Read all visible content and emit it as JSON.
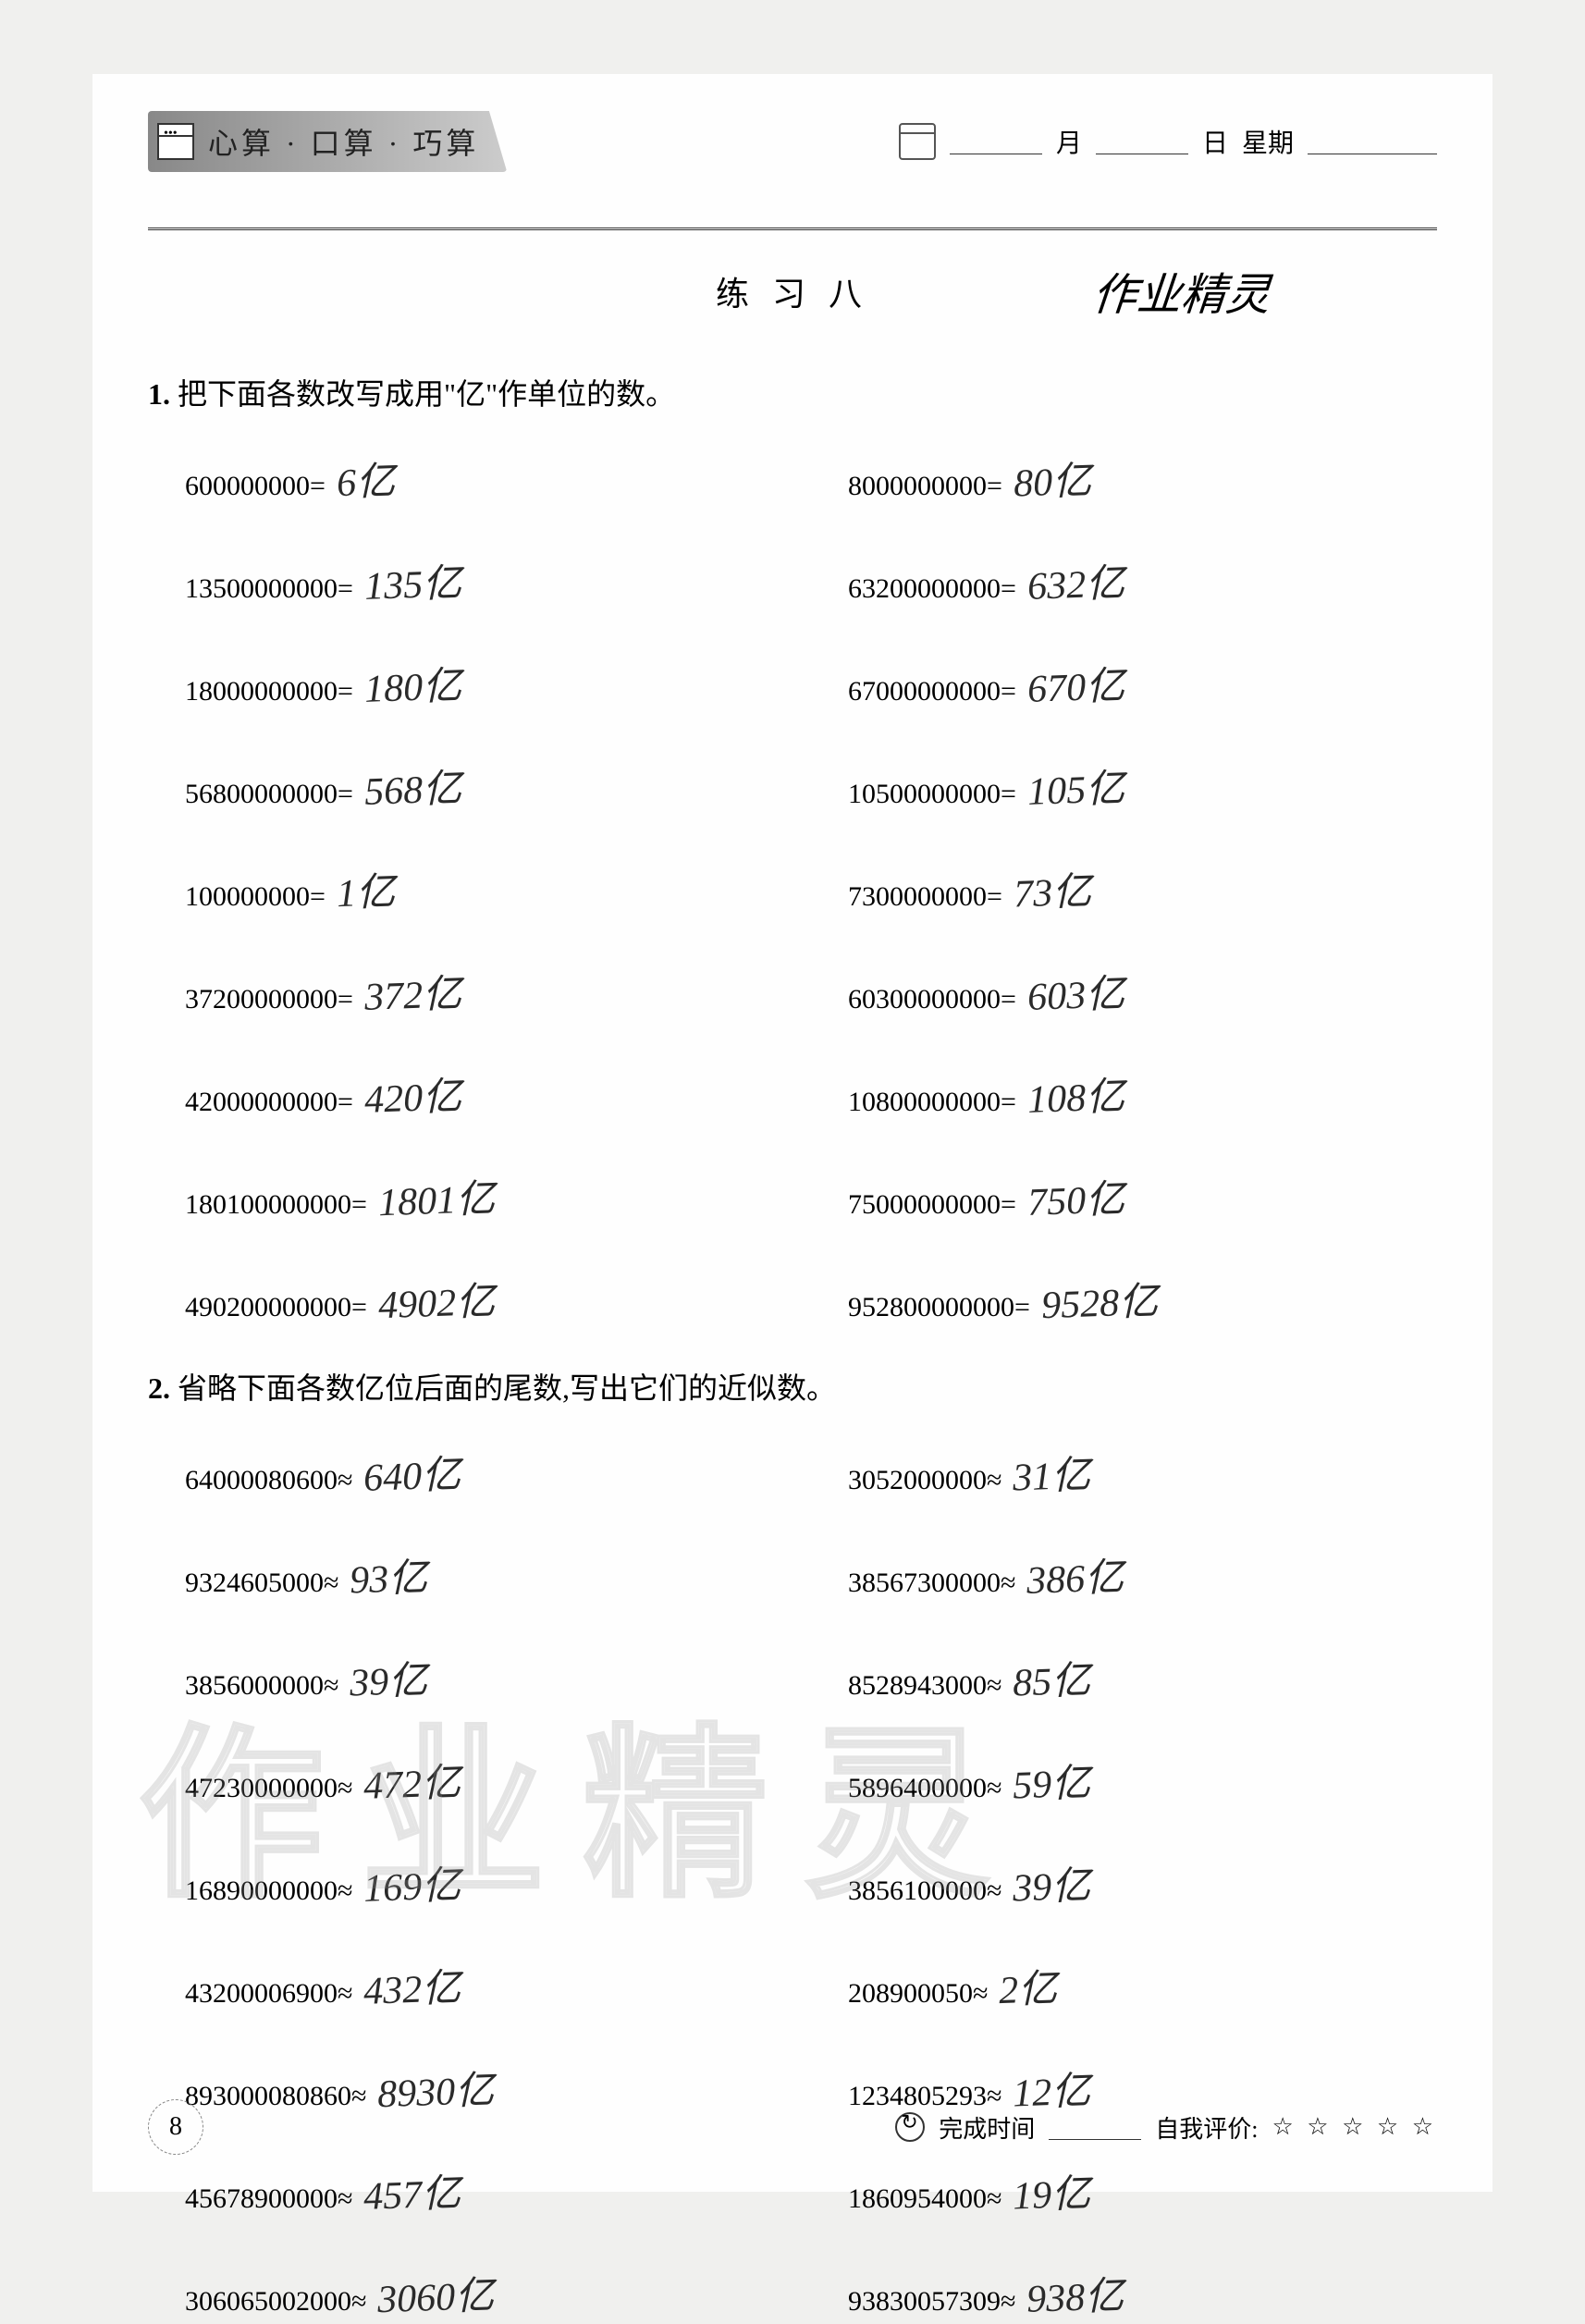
{
  "header": {
    "title": "心算 · 口算 · 巧算",
    "month_label": "月",
    "day_label": "日",
    "weekday_label": "星期"
  },
  "exercise_title": "练 习 八",
  "handwritten_top": "作业精灵",
  "q1": {
    "num": "1.",
    "text": "把下面各数改写成用\"亿\"作单位的数。",
    "items": [
      {
        "expr": "600000000=",
        "ans": "6亿"
      },
      {
        "expr": "8000000000=",
        "ans": "80亿"
      },
      {
        "expr": "13500000000=",
        "ans": "135亿"
      },
      {
        "expr": "63200000000=",
        "ans": "632亿"
      },
      {
        "expr": "18000000000=",
        "ans": "180亿"
      },
      {
        "expr": "67000000000=",
        "ans": "670亿"
      },
      {
        "expr": "56800000000=",
        "ans": "568亿"
      },
      {
        "expr": "10500000000=",
        "ans": "105亿"
      },
      {
        "expr": "100000000=",
        "ans": "1亿"
      },
      {
        "expr": "7300000000=",
        "ans": "73亿"
      },
      {
        "expr": "37200000000=",
        "ans": "372亿"
      },
      {
        "expr": "60300000000=",
        "ans": "603亿"
      },
      {
        "expr": "42000000000=",
        "ans": "420亿"
      },
      {
        "expr": "10800000000=",
        "ans": "108亿"
      },
      {
        "expr": "180100000000=",
        "ans": "1801亿"
      },
      {
        "expr": "75000000000=",
        "ans": "750亿"
      },
      {
        "expr": "490200000000=",
        "ans": "4902亿"
      },
      {
        "expr": "952800000000=",
        "ans": "9528亿"
      }
    ]
  },
  "q2": {
    "num": "2.",
    "text": "省略下面各数亿位后面的尾数,写出它们的近似数。",
    "items": [
      {
        "expr": "64000080600≈",
        "ans": "640亿"
      },
      {
        "expr": "3052000000≈",
        "ans": "31亿"
      },
      {
        "expr": "9324605000≈",
        "ans": "93亿"
      },
      {
        "expr": "38567300000≈",
        "ans": "386亿"
      },
      {
        "expr": "3856000000≈",
        "ans": "39亿"
      },
      {
        "expr": "8528943000≈",
        "ans": "85亿"
      },
      {
        "expr": "47230000000≈",
        "ans": "472亿"
      },
      {
        "expr": "5896400000≈",
        "ans": "59亿"
      },
      {
        "expr": "16890000000≈",
        "ans": "169亿"
      },
      {
        "expr": "3856100000≈",
        "ans": "39亿"
      },
      {
        "expr": "43200006900≈",
        "ans": "432亿"
      },
      {
        "expr": "208900050≈",
        "ans": "2亿"
      },
      {
        "expr": "893000080860≈",
        "ans": "8930亿"
      },
      {
        "expr": "1234805293≈",
        "ans": "12亿"
      },
      {
        "expr": "45678900000≈",
        "ans": "457亿"
      },
      {
        "expr": "1860954000≈",
        "ans": "19亿"
      },
      {
        "expr": "306065002000≈",
        "ans": "3060亿"
      },
      {
        "expr": "93830057309≈",
        "ans": "938亿"
      }
    ]
  },
  "watermark": "作业精灵",
  "footer": {
    "page": "8",
    "time_label": "完成时间",
    "rating_label": "自我评价:",
    "stars": "☆ ☆ ☆ ☆ ☆"
  }
}
